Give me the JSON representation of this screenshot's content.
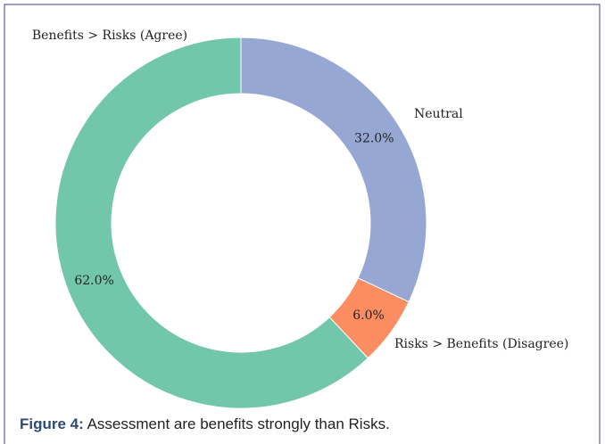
{
  "chart_data": {
    "type": "donut",
    "categories": [
      "Benefits > Risks (Agree)",
      "Risks > Benefits (Disagree)",
      "Neutral"
    ],
    "values": [
      62,
      6,
      32
    ],
    "value_labels": [
      "62.0%",
      "6.0%",
      "32.0%"
    ],
    "colors": [
      "#72c6a9",
      "#fc8d62",
      "#97a7d3"
    ]
  },
  "caption": {
    "label": "Figure 4:",
    "text": "Assessment are benefits strongly than Risks."
  }
}
